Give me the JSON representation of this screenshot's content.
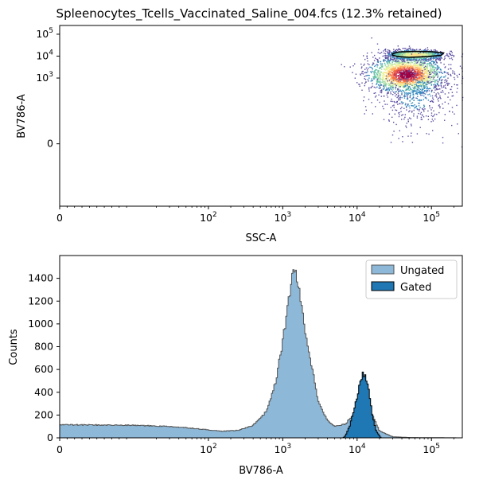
{
  "chart_data": [
    {
      "type": "scatter",
      "title": "Spleenocytes_Tcells_Vaccinated_Saline_004.fcs (12.3% retained)",
      "xlabel": "SSC-A",
      "ylabel": "BV786-A",
      "x_scale": "symlog",
      "y_scale": "symlog",
      "xlim": [
        0,
        260000
      ],
      "ylim": [
        -700,
        250000
      ],
      "x_ticks": [
        {
          "value": 0,
          "base": "0",
          "exp": ""
        },
        {
          "value": 100,
          "base": "10",
          "exp": "2"
        },
        {
          "value": 1000,
          "base": "10",
          "exp": "3"
        },
        {
          "value": 10000,
          "base": "10",
          "exp": "4"
        },
        {
          "value": 100000,
          "base": "10",
          "exp": "5"
        }
      ],
      "y_ticks": [
        {
          "value": 0,
          "base": "0",
          "exp": ""
        },
        {
          "value": 1000,
          "base": "10",
          "exp": "3"
        },
        {
          "value": 10000,
          "base": "10",
          "exp": "4"
        },
        {
          "value": 100000,
          "base": "10",
          "exp": "5"
        }
      ],
      "colormap": "Spectral_r density",
      "populations": [
        {
          "x_center": 45000,
          "y_center": 1500,
          "x_spread_decades": 0.25,
          "y_spread_decades": 0.4,
          "weight": 0.6
        },
        {
          "x_center": 60000,
          "y_center": 12000,
          "x_spread_decades": 0.2,
          "y_spread_decades": 0.12,
          "weight": 0.25
        },
        {
          "x_center": 60000,
          "y_center": 200,
          "x_spread_decades": 0.25,
          "y_spread_decades": 0.8,
          "weight": 0.15
        }
      ],
      "gate": {
        "shape": "polygon",
        "vertices": [
          [
            30000,
            13000
          ],
          [
            36000,
            15500
          ],
          [
            60000,
            16500
          ],
          [
            100000,
            16000
          ],
          [
            145000,
            14000
          ],
          [
            135000,
            11000
          ],
          [
            90000,
            9500
          ],
          [
            50000,
            8800
          ],
          [
            35000,
            9500
          ],
          [
            30000,
            11000
          ]
        ],
        "color": "#000000"
      }
    },
    {
      "type": "histogram",
      "xlabel": "BV786-A",
      "ylabel": "Counts",
      "x_scale": "symlog",
      "xlim": [
        0,
        260000
      ],
      "ylim": [
        0,
        1600
      ],
      "x_ticks": [
        {
          "value": 0,
          "base": "0",
          "exp": ""
        },
        {
          "value": 100,
          "base": "10",
          "exp": "2"
        },
        {
          "value": 1000,
          "base": "10",
          "exp": "3"
        },
        {
          "value": 10000,
          "base": "10",
          "exp": "4"
        },
        {
          "value": 100000,
          "base": "10",
          "exp": "5"
        }
      ],
      "y_ticks": [
        0,
        200,
        400,
        600,
        800,
        1000,
        1200,
        1400
      ],
      "legend_position": "top-right",
      "series": [
        {
          "name": "Ungated",
          "fill": "#8db8d8",
          "edge": "#555555",
          "profile": [
            [
              0,
              115
            ],
            [
              10,
              110
            ],
            [
              30,
              100
            ],
            [
              60,
              85
            ],
            [
              100,
              70
            ],
            [
              150,
              58
            ],
            [
              250,
              65
            ],
            [
              400,
              110
            ],
            [
              600,
              230
            ],
            [
              800,
              480
            ],
            [
              1000,
              850
            ],
            [
              1200,
              1200
            ],
            [
              1380,
              1510
            ],
            [
              1600,
              1350
            ],
            [
              2000,
              950
            ],
            [
              2500,
              600
            ],
            [
              3000,
              330
            ],
            [
              4000,
              150
            ],
            [
              5000,
              100
            ],
            [
              7000,
              120
            ],
            [
              10000,
              250
            ],
            [
              12500,
              320
            ],
            [
              16000,
              200
            ],
            [
              20000,
              60
            ],
            [
              30000,
              10
            ],
            [
              50000,
              3
            ],
            [
              260000,
              0
            ]
          ]
        },
        {
          "name": "Gated",
          "fill": "#1f77b4",
          "edge": "#000000",
          "profile": [
            [
              6500,
              0
            ],
            [
              7000,
              20
            ],
            [
              8000,
              110
            ],
            [
              9500,
              300
            ],
            [
              11000,
              480
            ],
            [
              12000,
              570
            ],
            [
              13000,
              540
            ],
            [
              14500,
              400
            ],
            [
              16000,
              200
            ],
            [
              18000,
              60
            ],
            [
              21000,
              0
            ]
          ]
        }
      ]
    }
  ]
}
